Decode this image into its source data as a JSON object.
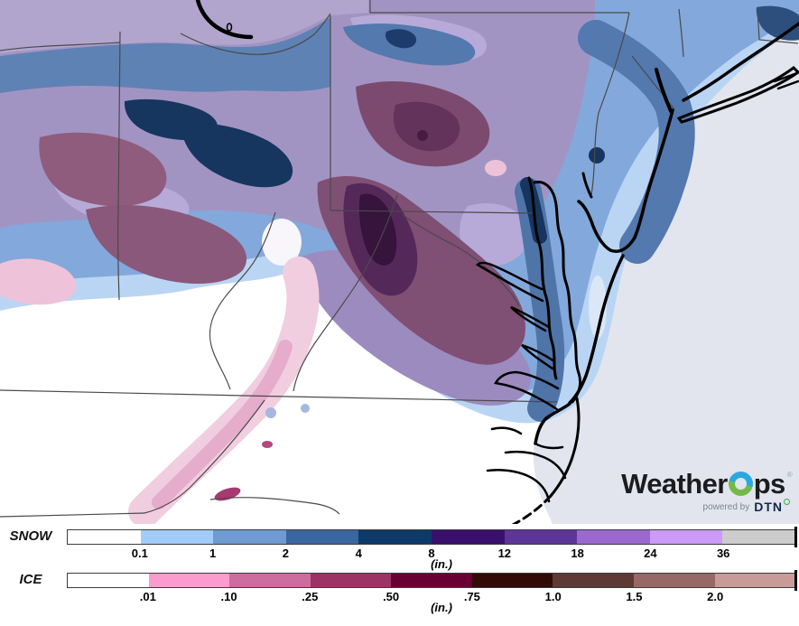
{
  "map": {
    "colors": {
      "ocean": "#e2e5ed",
      "land": "#ffffff"
    }
  },
  "logo": {
    "brand_prefix": "Weather",
    "brand_suffix": "ps",
    "trademark": "®",
    "powered_by": "powered by",
    "powered_brand": "DTN",
    "colors": {
      "o_top_blue": "#2ba9df",
      "o_bottom_green": "#76b94b",
      "dtn_navy": "#12294d",
      "powered_gray": "#7e8690",
      "degree_green": "#36b04a"
    }
  },
  "legend": {
    "snow": {
      "label": "SNOW",
      "unit": "(in.)",
      "tick_labels": [
        "0.1",
        "1",
        "2",
        "4",
        "8",
        "12",
        "18",
        "24",
        "36"
      ],
      "segment_colors": [
        "#ffffff",
        "#a2ccf8",
        "#6d9bd2",
        "#3a669f",
        "#0d3a68",
        "#390f6d",
        "#5d3599",
        "#9b68d0",
        "#cb9bf7",
        "#cccccc"
      ]
    },
    "ice": {
      "label": "ICE",
      "unit": "(in.)",
      "tick_labels": [
        ".01",
        ".10",
        ".25",
        ".50",
        ".75",
        "1.0",
        "1.5",
        "2.0"
      ],
      "segment_colors": [
        "#ffffff",
        "#fc9cce",
        "#cd6d9f",
        "#9b3365",
        "#690034",
        "#330a05",
        "#5f3936",
        "#986866",
        "#c99b98"
      ]
    }
  }
}
